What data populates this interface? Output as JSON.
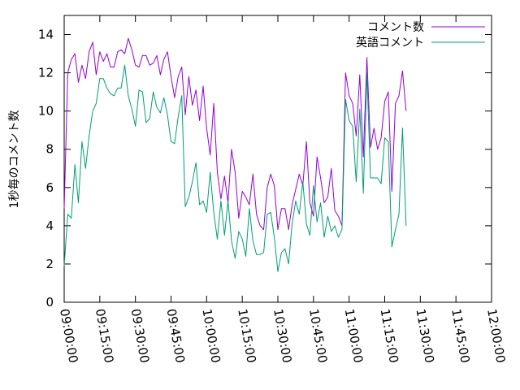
{
  "chart_data": {
    "type": "line",
    "ylabel": "1秒毎のコメント数",
    "xlabel": "",
    "title": "",
    "ylim": [
      0,
      15
    ],
    "yticks": [
      0,
      2,
      4,
      6,
      8,
      10,
      12,
      14
    ],
    "xlim_min": [
      0,
      180
    ],
    "xtick_labels": [
      "09:00:00",
      "09:15:00",
      "09:30:00",
      "09:45:00",
      "10:00:00",
      "10:15:00",
      "10:30:00",
      "10:45:00",
      "11:00:00",
      "11:15:00",
      "11:30:00",
      "11:45:00",
      "12:00:00"
    ],
    "x_start": "09:00:00",
    "x_step_min": 1.5,
    "grid": false,
    "legend_position": "top-right",
    "series": [
      {
        "name": "コメント数",
        "color": "#9400d3",
        "values": [
          4.9,
          12.0,
          12.7,
          13.0,
          11.5,
          12.4,
          11.7,
          13.1,
          13.6,
          11.9,
          13.1,
          12.6,
          13.0,
          12.3,
          12.3,
          13.1,
          13.2,
          13.0,
          13.8,
          13.2,
          12.4,
          12.3,
          12.9,
          12.9,
          12.4,
          12.5,
          12.9,
          11.9,
          12.7,
          13.1,
          11.8,
          10.7,
          11.8,
          12.3,
          9.8,
          11.8,
          10.3,
          11.1,
          9.5,
          11.3,
          9.1,
          7.7,
          10.4,
          6.8,
          5.4,
          6.6,
          5.2,
          8.0,
          6.8,
          4.4,
          5.8,
          5.5,
          5.1,
          6.7,
          4.6,
          4.0,
          3.8,
          6.0,
          6.7,
          6.1,
          3.8,
          4.9,
          4.9,
          3.8,
          5.1,
          5.9,
          6.7,
          6.1,
          8.4,
          5.2,
          4.5,
          7.6,
          6.5,
          5.2,
          5.5,
          7.0,
          4.8,
          4.5,
          4.0,
          12.0,
          10.8,
          10.4,
          8.7,
          11.9,
          7.6,
          12.8,
          8.1,
          9.1,
          8.0,
          8.6,
          10.5,
          11.0,
          5.8,
          10.4,
          10.8,
          12.1,
          10.0
        ]
      },
      {
        "name": "英語コメント",
        "color": "#009e73",
        "values": [
          1.9,
          4.6,
          4.4,
          7.2,
          5.2,
          8.4,
          7.0,
          8.7,
          10.0,
          10.4,
          11.7,
          11.7,
          11.2,
          10.9,
          10.8,
          11.2,
          11.2,
          12.4,
          10.8,
          10.1,
          9.2,
          11.1,
          11.0,
          9.4,
          9.6,
          11.0,
          10.2,
          9.9,
          10.7,
          9.8,
          8.4,
          8.3,
          9.7,
          10.8,
          5.0,
          5.5,
          6.3,
          7.3,
          5.1,
          5.3,
          4.7,
          6.8,
          4.7,
          3.3,
          5.3,
          3.5,
          5.3,
          3.2,
          2.3,
          3.7,
          3.3,
          2.4,
          4.9,
          3.2,
          2.5,
          2.5,
          2.6,
          4.6,
          4.7,
          3.4,
          1.6,
          2.6,
          2.8,
          2.0,
          4.1,
          5.3,
          4.6,
          6.3,
          4.1,
          3.5,
          6.1,
          4.2,
          5.2,
          3.4,
          4.5,
          3.7,
          4.0,
          3.4,
          3.8,
          10.6,
          9.5,
          9.2,
          6.3,
          10.1,
          5.7,
          12.0,
          6.5,
          6.5,
          6.5,
          6.2,
          8.6,
          8.4,
          2.9,
          3.8,
          4.6,
          9.1,
          4.0
        ]
      }
    ]
  }
}
